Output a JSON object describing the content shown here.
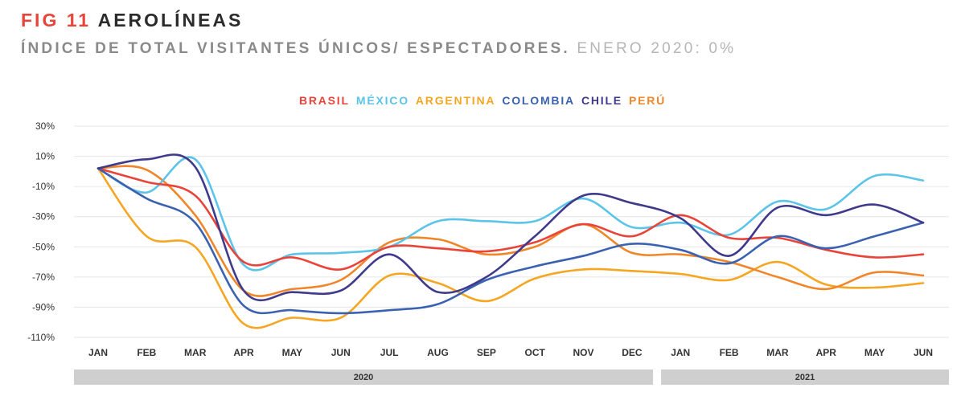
{
  "header": {
    "fig_label": "FIG 11",
    "title": "AEROLÍNEAS",
    "subtitle": "ÍNDICE DE TOTAL VISITANTES ÚNICOS/ ESPECTADORES.",
    "subtitle_note": "ENERO 2020: 0%"
  },
  "chart_data": {
    "type": "line",
    "title": "AEROLÍNEAS",
    "subtitle": "Índice de total visitantes únicos/ espectadores. Enero 2020: 0%",
    "xlabel": "",
    "ylabel": "",
    "ylim": [
      -110,
      30
    ],
    "yticks": [
      "30%",
      "10%",
      "-10%",
      "-30%",
      "-50%",
      "-70%",
      "-90%",
      "-110%"
    ],
    "ytick_values": [
      30,
      10,
      -10,
      -30,
      -50,
      -70,
      -90,
      -110
    ],
    "grid": true,
    "legend_position": "top-center",
    "categories": [
      "JAN",
      "FEB",
      "MAR",
      "APR",
      "MAY",
      "JUN",
      "JUL",
      "AUG",
      "SEP",
      "OCT",
      "NOV",
      "DEC",
      "JAN",
      "FEB",
      "MAR",
      "APR",
      "MAY",
      "JUN"
    ],
    "year_groups": [
      {
        "label": "2020",
        "start": 0,
        "end": 11
      },
      {
        "label": "2021",
        "start": 12,
        "end": 17
      }
    ],
    "series": [
      {
        "name": "BRASIL",
        "color": "#e8443a",
        "values": [
          2,
          -7,
          -16,
          -60,
          -57,
          -65,
          -50,
          -51,
          -53,
          -47,
          -35,
          -43,
          -29,
          -44,
          -44,
          -52,
          -57,
          -55
        ]
      },
      {
        "name": "MÉXICO",
        "color": "#5bc4e8",
        "values": [
          2,
          -14,
          8,
          -62,
          -55,
          -54,
          -50,
          -33,
          -33,
          -33,
          -18,
          -37,
          -34,
          -42,
          -20,
          -25,
          -3,
          -6
        ]
      },
      {
        "name": "ARGENTINA",
        "color": "#f5a623",
        "values": [
          2,
          -43,
          -50,
          -101,
          -97,
          -97,
          -69,
          -74,
          -86,
          -71,
          -65,
          -66,
          -68,
          -72,
          -60,
          -75,
          -77,
          -74
        ]
      },
      {
        "name": "COLOMBIA",
        "color": "#3a62b0",
        "values": [
          2,
          -18,
          -34,
          -89,
          -92,
          -94,
          -92,
          -88,
          -72,
          -63,
          -56,
          -48,
          -52,
          -61,
          -43,
          -51,
          -43,
          -34
        ]
      },
      {
        "name": "CHILE",
        "color": "#3f3a8c",
        "values": [
          2,
          8,
          3,
          -79,
          -80,
          -79,
          -55,
          -80,
          -70,
          -43,
          -16,
          -21,
          -31,
          -56,
          -24,
          -29,
          -22,
          -34
        ]
      },
      {
        "name": "PERÚ",
        "color": "#f0862a",
        "values": [
          2,
          1,
          -29,
          -79,
          -78,
          -72,
          -47,
          -45,
          -55,
          -50,
          -35,
          -54,
          -55,
          -60,
          -70,
          -78,
          -67,
          -69
        ]
      }
    ]
  }
}
